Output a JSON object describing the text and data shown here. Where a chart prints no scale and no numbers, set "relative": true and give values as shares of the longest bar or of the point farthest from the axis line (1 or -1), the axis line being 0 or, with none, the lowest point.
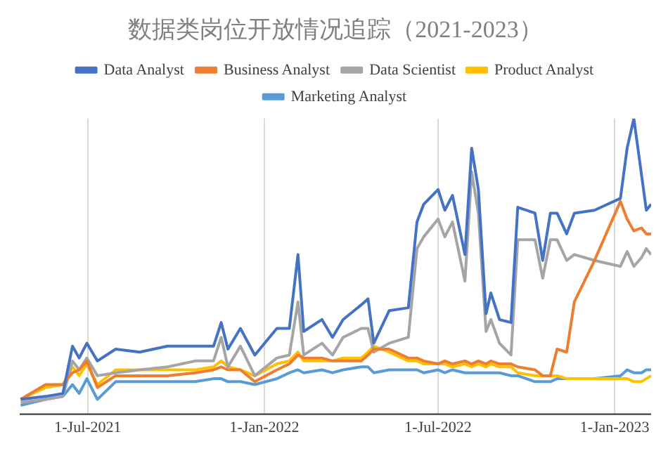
{
  "chart_data": {
    "type": "line",
    "title": "数据类岗位开放情况追踪（2021-2023）",
    "relative": true,
    "legend": "top",
    "grid": "x",
    "marker": "none",
    "line_style": "solid",
    "x": [
      "2021-04-22",
      "2021-05-18",
      "2021-06-05",
      "2021-06-15",
      "2021-06-22",
      "2021-06-30",
      "2021-07-11",
      "2021-07-30",
      "2021-08-24",
      "2021-09-22",
      "2021-10-21",
      "2021-11-09",
      "2021-11-17",
      "2021-11-24",
      "2021-12-07",
      "2021-12-22",
      "2022-01-14",
      "2022-01-27",
      "2022-02-05",
      "2022-02-11",
      "2022-03-02",
      "2022-03-13",
      "2022-03-24",
      "2022-04-12",
      "2022-04-19",
      "2022-04-25",
      "2022-05-11",
      "2022-05-31",
      "2022-06-09",
      "2022-06-16",
      "2022-07-01",
      "2022-07-08",
      "2022-07-16",
      "2022-07-29",
      "2022-08-05",
      "2022-08-12",
      "2022-08-20",
      "2022-08-25",
      "2022-09-03",
      "2022-09-15",
      "2022-09-22",
      "2022-10-10",
      "2022-10-18",
      "2022-10-26",
      "2022-11-02",
      "2022-11-12",
      "2022-11-20",
      "2022-12-11",
      "2023-01-07",
      "2023-01-14",
      "2023-01-21",
      "2023-01-29",
      "2023-02-03",
      "2023-02-08"
    ],
    "xlim": [
      "2021-04-21",
      "2023-02-08"
    ],
    "xticks": [
      {
        "value": "2021-07-01",
        "label": "1-Jul-2021"
      },
      {
        "value": "2022-01-01",
        "label": "1-Jan-2022"
      },
      {
        "value": "2022-07-01",
        "label": "1-Jul-2022"
      },
      {
        "value": "2023-01-01",
        "label": "1-Jan-2023"
      }
    ],
    "series": [
      {
        "name": "Data Analyst",
        "color": "#4472c4",
        "values": [
          0.05,
          0.06,
          0.07,
          0.23,
          0.19,
          0.24,
          0.18,
          0.22,
          0.21,
          0.23,
          0.23,
          0.23,
          0.31,
          0.22,
          0.29,
          0.2,
          0.29,
          0.29,
          0.54,
          0.28,
          0.32,
          0.26,
          0.32,
          0.37,
          0.39,
          0.24,
          0.35,
          0.36,
          0.65,
          0.71,
          0.76,
          0.69,
          0.74,
          0.54,
          0.9,
          0.76,
          0.34,
          0.41,
          0.32,
          0.31,
          0.7,
          0.68,
          0.52,
          0.68,
          0.68,
          0.61,
          0.68,
          0.69,
          0.73,
          0.9,
          1,
          0.81,
          0.69,
          0.71
        ]
      },
      {
        "name": "Business Analyst",
        "color": "#ed7d31",
        "values": [
          0.05,
          0.1,
          0.1,
          0.14,
          0.15,
          0.18,
          0.09,
          0.13,
          0.13,
          0.13,
          0.14,
          0.15,
          0.16,
          0.15,
          0.15,
          0.11,
          0.15,
          0.17,
          0.2,
          0.19,
          0.19,
          0.18,
          0.18,
          0.18,
          0.2,
          0.22,
          0.22,
          0.19,
          0.19,
          0.18,
          0.17,
          0.18,
          0.17,
          0.18,
          0.17,
          0.18,
          0.17,
          0.18,
          0.17,
          0.17,
          0.16,
          0.15,
          0.13,
          0.13,
          0.22,
          0.21,
          0.38,
          0.52,
          0.72,
          0.66,
          0.62,
          0.63,
          0.61,
          0.61
        ]
      },
      {
        "name": "Data Scientist",
        "color": "#a5a5a5",
        "values": [
          0.04,
          0.05,
          0.06,
          0.18,
          0.15,
          0.19,
          0.13,
          0.14,
          0.15,
          0.16,
          0.18,
          0.18,
          0.26,
          0.16,
          0.23,
          0.13,
          0.19,
          0.2,
          0.38,
          0.2,
          0.24,
          0.2,
          0.26,
          0.29,
          0.29,
          0.21,
          0.24,
          0.26,
          0.56,
          0.6,
          0.66,
          0.6,
          0.65,
          0.45,
          0.82,
          0.68,
          0.28,
          0.32,
          0.24,
          0.2,
          0.59,
          0.59,
          0.46,
          0.59,
          0.59,
          0.52,
          0.54,
          0.52,
          0.5,
          0.55,
          0.5,
          0.53,
          0.56,
          0.54
        ]
      },
      {
        "name": "Product Analyst",
        "color": "#ffc000",
        "values": [
          0.05,
          0.09,
          0.1,
          0.16,
          0.13,
          0.17,
          0.1,
          0.15,
          0.15,
          0.15,
          0.15,
          0.16,
          0.18,
          0.16,
          0.15,
          0.13,
          0.17,
          0.18,
          0.21,
          0.18,
          0.18,
          0.18,
          0.19,
          0.19,
          0.21,
          0.23,
          0.21,
          0.18,
          0.18,
          0.17,
          0.17,
          0.17,
          0.16,
          0.17,
          0.16,
          0.17,
          0.16,
          0.17,
          0.16,
          0.16,
          0.14,
          0.13,
          0.13,
          0.13,
          0.13,
          0.12,
          0.12,
          0.12,
          0.12,
          0.12,
          0.11,
          0.11,
          0.12,
          0.13
        ]
      },
      {
        "name": "Marketing Analyst",
        "color": "#5b9bd5",
        "values": [
          0.03,
          0.05,
          0.06,
          0.1,
          0.07,
          0.12,
          0.05,
          0.11,
          0.11,
          0.11,
          0.11,
          0.12,
          0.12,
          0.11,
          0.11,
          0.1,
          0.12,
          0.14,
          0.15,
          0.14,
          0.15,
          0.14,
          0.15,
          0.16,
          0.16,
          0.14,
          0.15,
          0.15,
          0.15,
          0.14,
          0.15,
          0.14,
          0.15,
          0.14,
          0.14,
          0.14,
          0.14,
          0.14,
          0.14,
          0.13,
          0.13,
          0.11,
          0.11,
          0.11,
          0.12,
          0.12,
          null,
          0.12,
          0.13,
          0.15,
          0.14,
          0.14,
          0.15,
          0.15
        ]
      }
    ]
  }
}
